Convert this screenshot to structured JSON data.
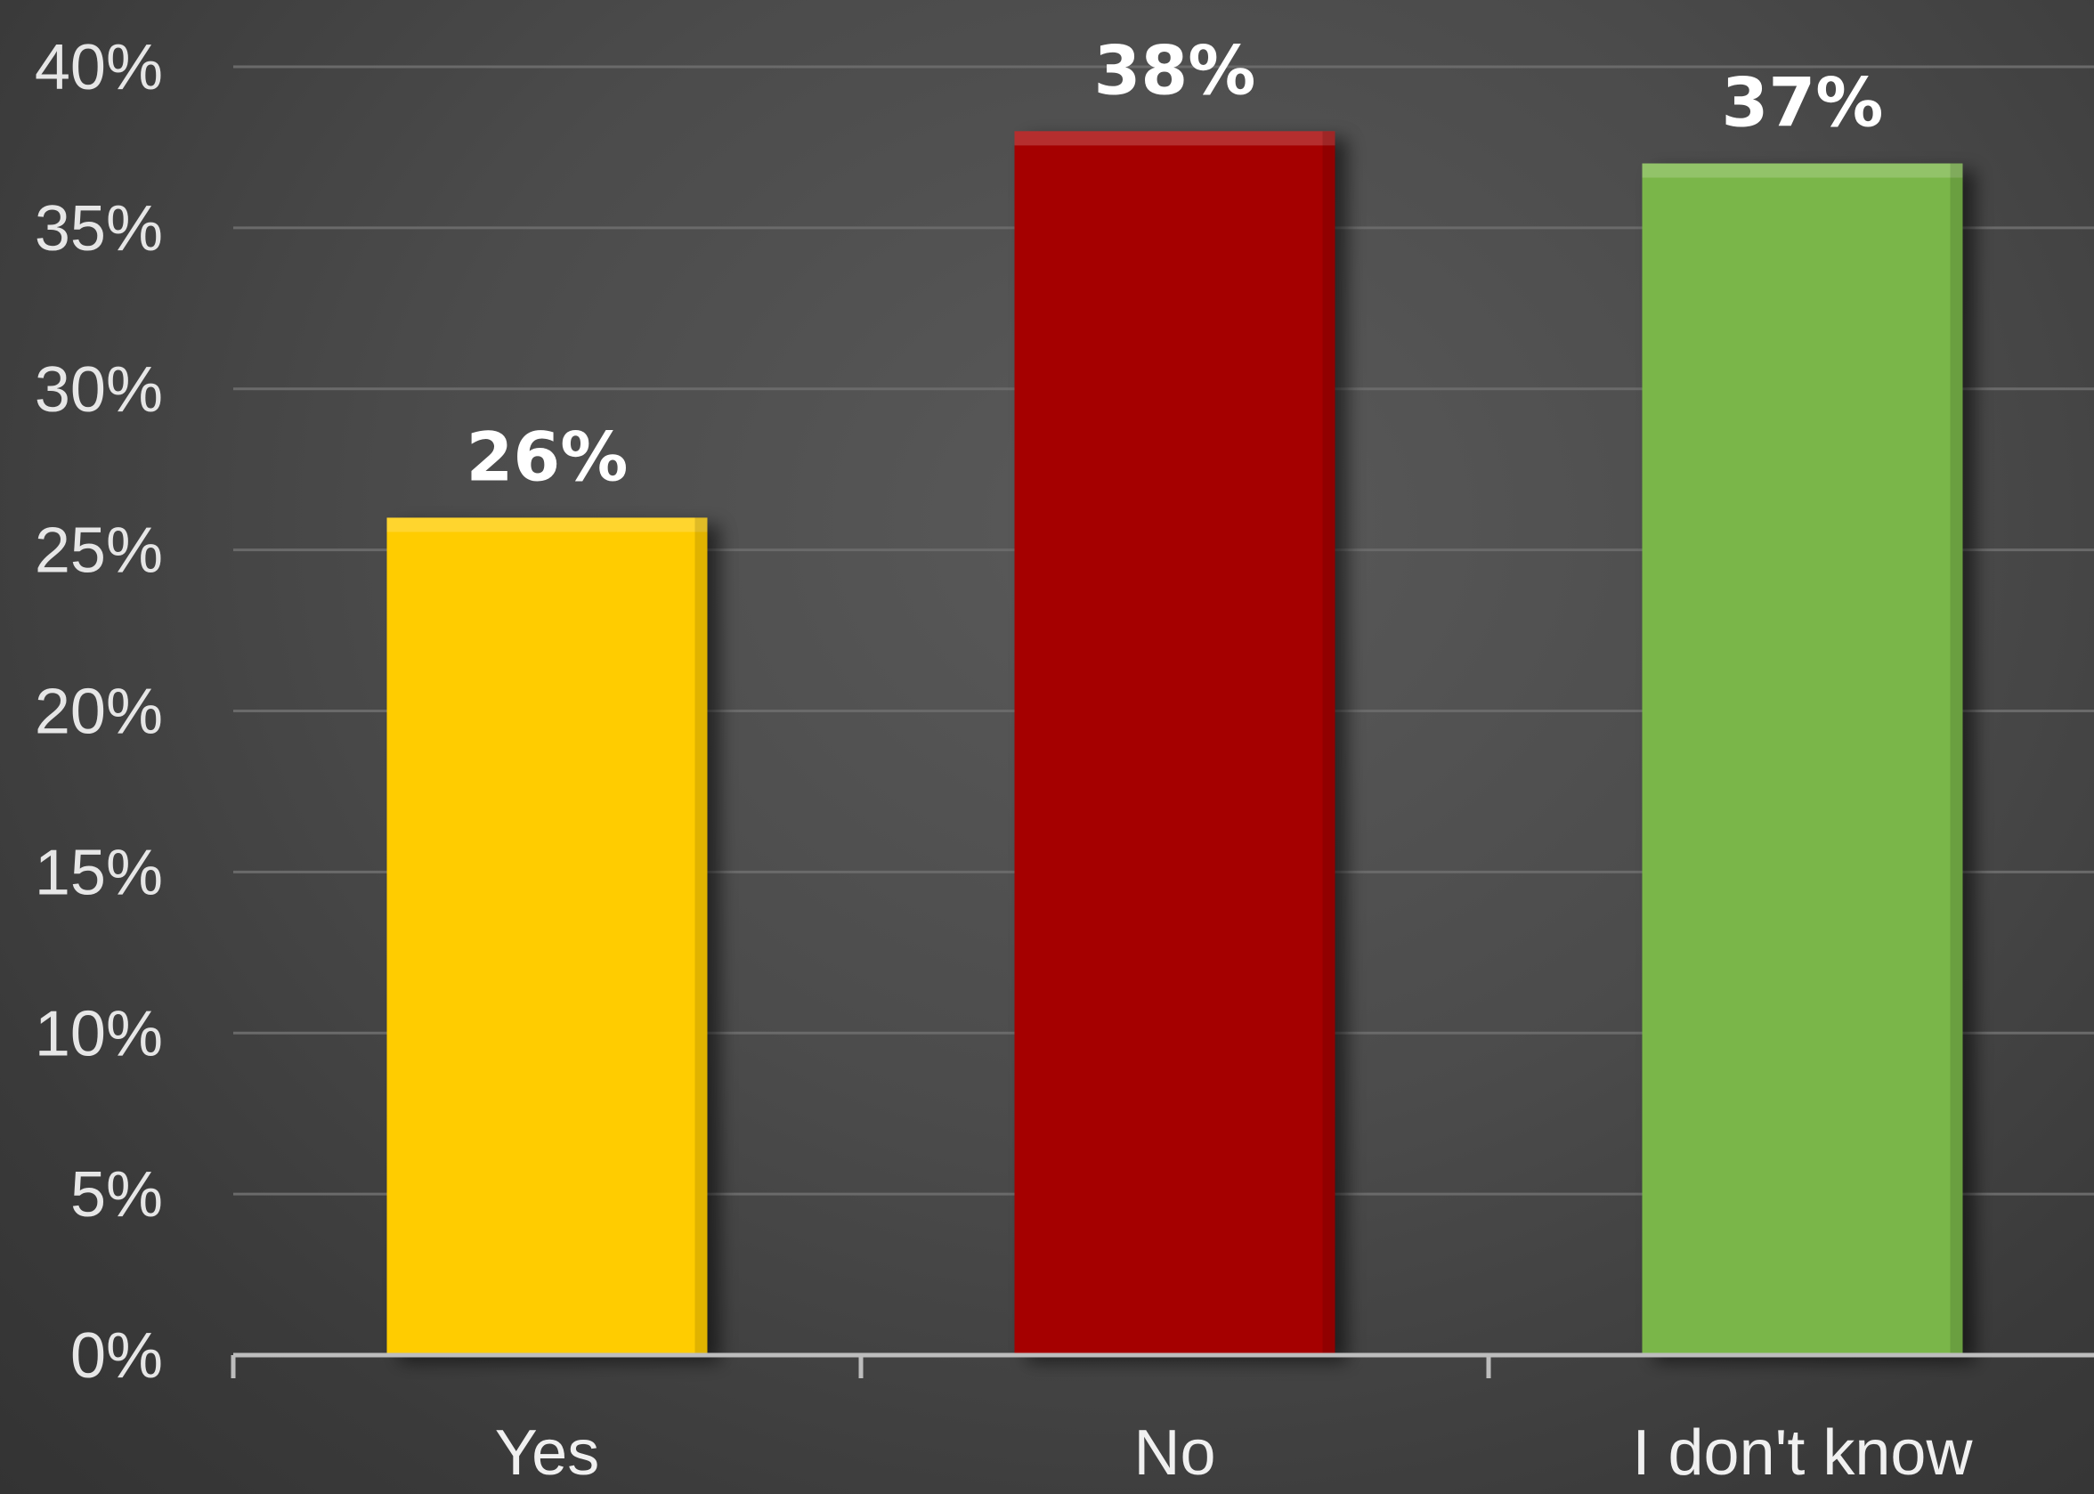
{
  "chart_data": {
    "type": "bar",
    "title": "",
    "xlabel": "",
    "ylabel": "",
    "categories": [
      "Yes",
      "No",
      "I don't know"
    ],
    "values": [
      26,
      38,
      37
    ],
    "data_labels": [
      "26%",
      "38%",
      "37%"
    ],
    "bar_colors": [
      "#ffcc00",
      "#a50000",
      "#7ab648"
    ],
    "ylim": [
      0,
      40
    ],
    "yticks": [
      0,
      5,
      10,
      15,
      20,
      25,
      30,
      35,
      40
    ],
    "ytick_labels": [
      "0%",
      "5%",
      "10%",
      "15%",
      "20%",
      "25%",
      "30%",
      "35%",
      "40%"
    ],
    "grid": true,
    "legend": "none"
  },
  "colors": {
    "gridline": "#6a6a6a",
    "axis": "#bdbdbd"
  }
}
